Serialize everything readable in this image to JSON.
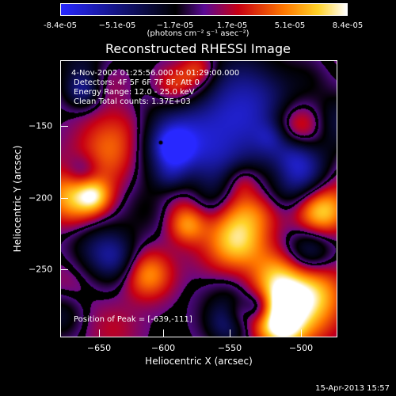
{
  "colorbar": {
    "ticks": [
      "-8.4e-05",
      "−5.1e-05",
      "−1.7e-05",
      "1.7e-05",
      "5.1e-05",
      "8.4e-05"
    ],
    "units": "(photons cm⁻² s⁻¹ asec⁻²)"
  },
  "plot": {
    "title": "Reconstructed RHESSI Image",
    "annotation": {
      "time": "4-Nov-2002 01:25:56.000 to 01:29:00.000",
      "detectors": "Detectors: 4F 5F 6F 7F 8F, Att 0",
      "energy": "Energy Range: 12.0 - 25.0 keV",
      "clean": "Clean    Total counts: 1.37E+03",
      "peak": "Position of Peak = [-639,-111]"
    },
    "xlabel": "Heliocentric X (arcsec)",
    "ylabel": "Heliocentric Y (arcsec)",
    "xticks": [
      "−650",
      "−600",
      "−550",
      "−500"
    ],
    "yticks": [
      "−150",
      "−200",
      "−250"
    ],
    "datestamp": "15-Apr-2013 15:57"
  }
}
